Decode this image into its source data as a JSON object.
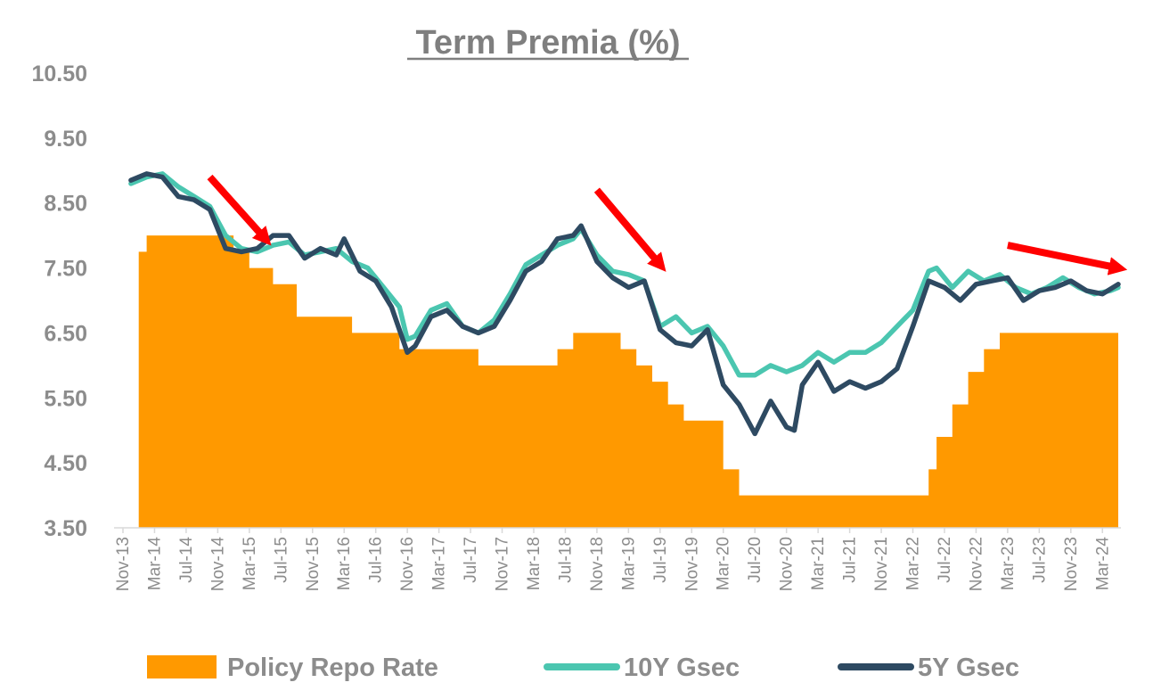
{
  "chart_data": {
    "type": "line",
    "title": "Term Premia (%)",
    "xlabel": "",
    "ylabel": "",
    "ylim": [
      3.5,
      10.5
    ],
    "yticks": [
      "3.50",
      "4.50",
      "5.50",
      "6.50",
      "7.50",
      "8.50",
      "9.50",
      "10.50"
    ],
    "xticks": [
      "Nov-13",
      "Mar-14",
      "Jul-14",
      "Nov-14",
      "Mar-15",
      "Jul-15",
      "Nov-15",
      "Mar-16",
      "Jul-16",
      "Nov-16",
      "Mar-17",
      "Jul-17",
      "Nov-17",
      "Mar-18",
      "Jul-18",
      "Nov-18",
      "Mar-19",
      "Jul-19",
      "Nov-19",
      "Mar-20",
      "Jul-20",
      "Nov-20",
      "Mar-21",
      "Jul-21",
      "Nov-21",
      "Mar-22",
      "Jul-22",
      "Nov-22",
      "Mar-23",
      "Jul-23",
      "Nov-23",
      "Mar-24"
    ],
    "xrange": [
      "2013-11",
      "2024-05"
    ],
    "grid": false,
    "legend_position": "bottom",
    "series": [
      {
        "name": "Policy Repo Rate",
        "kind": "step-area",
        "color": "#ff9900",
        "points": [
          [
            "2014-01",
            7.75
          ],
          [
            "2014-02",
            8.0
          ],
          [
            "2015-01",
            7.75
          ],
          [
            "2015-03",
            7.5
          ],
          [
            "2015-06",
            7.25
          ],
          [
            "2015-09",
            6.75
          ],
          [
            "2016-04",
            6.5
          ],
          [
            "2016-10",
            6.25
          ],
          [
            "2017-08",
            6.0
          ],
          [
            "2018-06",
            6.25
          ],
          [
            "2018-08",
            6.5
          ],
          [
            "2019-02",
            6.25
          ],
          [
            "2019-04",
            6.0
          ],
          [
            "2019-06",
            5.75
          ],
          [
            "2019-08",
            5.4
          ],
          [
            "2019-10",
            5.15
          ],
          [
            "2020-03",
            4.4
          ],
          [
            "2020-05",
            4.0
          ],
          [
            "2022-05",
            4.4
          ],
          [
            "2022-06",
            4.9
          ],
          [
            "2022-08",
            5.4
          ],
          [
            "2022-10",
            5.9
          ],
          [
            "2022-12",
            6.25
          ],
          [
            "2023-02",
            6.5
          ],
          [
            "2024-05",
            6.5
          ]
        ]
      },
      {
        "name": "10Y Gsec",
        "kind": "line",
        "color": "#4bc6b0",
        "points": [
          [
            "2013-12",
            8.8
          ],
          [
            "2014-02",
            8.9
          ],
          [
            "2014-04",
            8.95
          ],
          [
            "2014-06",
            8.75
          ],
          [
            "2014-08",
            8.6
          ],
          [
            "2014-10",
            8.45
          ],
          [
            "2014-12",
            8.0
          ],
          [
            "2015-02",
            7.8
          ],
          [
            "2015-04",
            7.75
          ],
          [
            "2015-06",
            7.85
          ],
          [
            "2015-08",
            7.9
          ],
          [
            "2015-10",
            7.7
          ],
          [
            "2015-12",
            7.75
          ],
          [
            "2016-02",
            7.8
          ],
          [
            "2016-04",
            7.6
          ],
          [
            "2016-06",
            7.5
          ],
          [
            "2016-08",
            7.2
          ],
          [
            "2016-10",
            6.9
          ],
          [
            "2016-11",
            6.4
          ],
          [
            "2016-12",
            6.45
          ],
          [
            "2017-02",
            6.85
          ],
          [
            "2017-04",
            6.95
          ],
          [
            "2017-06",
            6.6
          ],
          [
            "2017-08",
            6.5
          ],
          [
            "2017-10",
            6.7
          ],
          [
            "2017-12",
            7.1
          ],
          [
            "2018-02",
            7.55
          ],
          [
            "2018-04",
            7.7
          ],
          [
            "2018-06",
            7.85
          ],
          [
            "2018-08",
            7.95
          ],
          [
            "2018-09",
            8.1
          ],
          [
            "2018-11",
            7.7
          ],
          [
            "2019-01",
            7.45
          ],
          [
            "2019-03",
            7.4
          ],
          [
            "2019-05",
            7.3
          ],
          [
            "2019-07",
            6.6
          ],
          [
            "2019-09",
            6.75
          ],
          [
            "2019-11",
            6.5
          ],
          [
            "2020-01",
            6.6
          ],
          [
            "2020-03",
            6.3
          ],
          [
            "2020-05",
            5.85
          ],
          [
            "2020-07",
            5.85
          ],
          [
            "2020-09",
            6.0
          ],
          [
            "2020-11",
            5.9
          ],
          [
            "2021-01",
            6.0
          ],
          [
            "2021-03",
            6.2
          ],
          [
            "2021-05",
            6.05
          ],
          [
            "2021-07",
            6.2
          ],
          [
            "2021-09",
            6.2
          ],
          [
            "2021-11",
            6.35
          ],
          [
            "2022-01",
            6.6
          ],
          [
            "2022-03",
            6.85
          ],
          [
            "2022-05",
            7.45
          ],
          [
            "2022-06",
            7.5
          ],
          [
            "2022-08",
            7.2
          ],
          [
            "2022-10",
            7.45
          ],
          [
            "2022-12",
            7.3
          ],
          [
            "2023-02",
            7.4
          ],
          [
            "2023-04",
            7.2
          ],
          [
            "2023-06",
            7.1
          ],
          [
            "2023-08",
            7.2
          ],
          [
            "2023-10",
            7.35
          ],
          [
            "2023-12",
            7.2
          ],
          [
            "2024-02",
            7.1
          ],
          [
            "2024-04",
            7.15
          ],
          [
            "2024-05",
            7.2
          ]
        ]
      },
      {
        "name": "5Y Gsec",
        "kind": "line",
        "color": "#2e4a62",
        "points": [
          [
            "2013-12",
            8.85
          ],
          [
            "2014-02",
            8.95
          ],
          [
            "2014-04",
            8.9
          ],
          [
            "2014-06",
            8.6
          ],
          [
            "2014-08",
            8.55
          ],
          [
            "2014-10",
            8.4
          ],
          [
            "2014-12",
            7.8
          ],
          [
            "2015-02",
            7.75
          ],
          [
            "2015-04",
            7.8
          ],
          [
            "2015-06",
            8.0
          ],
          [
            "2015-08",
            8.0
          ],
          [
            "2015-10",
            7.65
          ],
          [
            "2015-12",
            7.8
          ],
          [
            "2016-02",
            7.7
          ],
          [
            "2016-03",
            7.95
          ],
          [
            "2016-05",
            7.45
          ],
          [
            "2016-07",
            7.3
          ],
          [
            "2016-09",
            6.9
          ],
          [
            "2016-11",
            6.2
          ],
          [
            "2016-12",
            6.3
          ],
          [
            "2017-02",
            6.75
          ],
          [
            "2017-04",
            6.85
          ],
          [
            "2017-06",
            6.6
          ],
          [
            "2017-08",
            6.5
          ],
          [
            "2017-10",
            6.6
          ],
          [
            "2017-12",
            7.0
          ],
          [
            "2018-02",
            7.45
          ],
          [
            "2018-04",
            7.6
          ],
          [
            "2018-06",
            7.95
          ],
          [
            "2018-08",
            8.0
          ],
          [
            "2018-09",
            8.15
          ],
          [
            "2018-11",
            7.6
          ],
          [
            "2019-01",
            7.35
          ],
          [
            "2019-03",
            7.2
          ],
          [
            "2019-05",
            7.3
          ],
          [
            "2019-07",
            6.55
          ],
          [
            "2019-09",
            6.35
          ],
          [
            "2019-11",
            6.3
          ],
          [
            "2020-01",
            6.55
          ],
          [
            "2020-03",
            5.7
          ],
          [
            "2020-05",
            5.4
          ],
          [
            "2020-07",
            4.95
          ],
          [
            "2020-09",
            5.45
          ],
          [
            "2020-11",
            5.05
          ],
          [
            "2020-12",
            5.0
          ],
          [
            "2021-01",
            5.7
          ],
          [
            "2021-03",
            6.05
          ],
          [
            "2021-05",
            5.6
          ],
          [
            "2021-07",
            5.75
          ],
          [
            "2021-09",
            5.65
          ],
          [
            "2021-11",
            5.75
          ],
          [
            "2022-01",
            5.95
          ],
          [
            "2022-03",
            6.6
          ],
          [
            "2022-05",
            7.3
          ],
          [
            "2022-07",
            7.2
          ],
          [
            "2022-09",
            7.0
          ],
          [
            "2022-11",
            7.25
          ],
          [
            "2023-01",
            7.3
          ],
          [
            "2023-03",
            7.35
          ],
          [
            "2023-05",
            7.0
          ],
          [
            "2023-07",
            7.15
          ],
          [
            "2023-09",
            7.2
          ],
          [
            "2023-11",
            7.3
          ],
          [
            "2024-01",
            7.15
          ],
          [
            "2024-03",
            7.1
          ],
          [
            "2024-05",
            7.25
          ]
        ]
      }
    ],
    "annotations": [
      {
        "kind": "arrow",
        "color": "#ff0000",
        "from": [
          "2014-10",
          8.9
        ],
        "to": [
          "2015-05",
          7.95
        ]
      },
      {
        "kind": "arrow",
        "color": "#ff0000",
        "from": [
          "2018-11",
          8.7
        ],
        "to": [
          "2019-07",
          7.55
        ]
      },
      {
        "kind": "arrow",
        "color": "#ff0000",
        "from": [
          "2023-03",
          7.85
        ],
        "to": [
          "2024-05",
          7.5
        ]
      }
    ]
  }
}
